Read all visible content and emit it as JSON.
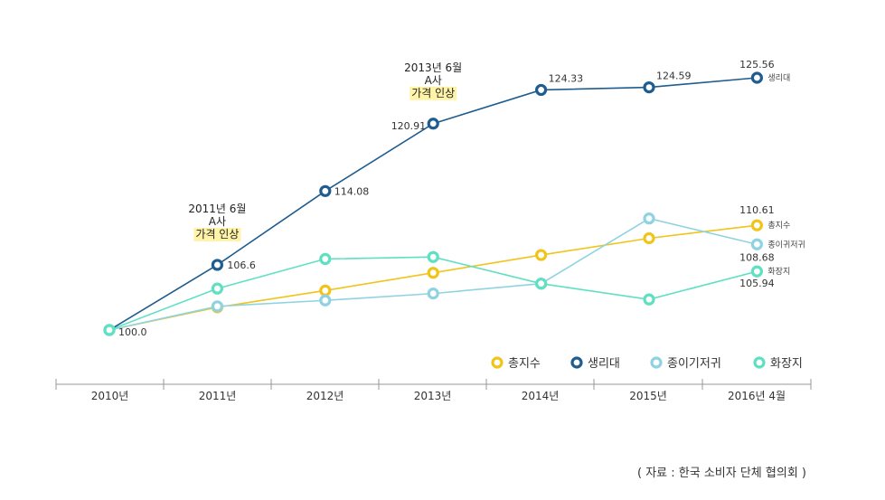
{
  "chart_data": {
    "type": "line",
    "categories": [
      "2010년",
      "2011년",
      "2012년",
      "2013년",
      "2014년",
      "2015년",
      "2016년 4월"
    ],
    "series": [
      {
        "name": "총지수",
        "color": "#f0c419",
        "values": [
          100.0,
          102.3,
          104.0,
          105.8,
          107.6,
          109.3,
          110.61
        ],
        "end_label": "총지수",
        "labels": {
          "6": "110.61"
        }
      },
      {
        "name": "생리대",
        "color": "#1f5c8f",
        "values": [
          100.0,
          106.6,
          114.08,
          120.91,
          124.33,
          124.59,
          125.56
        ],
        "end_label": "생리대",
        "labels": {
          "0": "100.0",
          "1": "106.6",
          "2": "114.08",
          "3": "120.91",
          "4": "124.33",
          "5": "124.59",
          "6": "125.56"
        }
      },
      {
        "name": "종이기저귀",
        "color": "#8fd3e3",
        "values": [
          100.0,
          102.4,
          103.0,
          103.7,
          104.7,
          111.3,
          108.68
        ],
        "end_label": "종이귀저귀",
        "labels": {
          "6": "108.68"
        }
      },
      {
        "name": "화장지",
        "color": "#5fe0c3",
        "values": [
          100.0,
          104.2,
          107.2,
          107.4,
          104.7,
          103.1,
          105.94
        ],
        "end_label": "화장지",
        "labels": {
          "6": "105.94"
        }
      }
    ],
    "ylim": [
      99.0,
      128.0
    ],
    "annotations": [
      {
        "lines": [
          "2011년 6월",
          "A사",
          "가격 인상"
        ],
        "x_index": 1
      },
      {
        "lines": [
          "2013년 6월",
          "A사",
          "가격 인상"
        ],
        "x_index": 3
      }
    ],
    "legend": [
      "총지수",
      "생리대",
      "종이기저귀",
      "화장지"
    ]
  },
  "source": "( 자료 : 한국 소비자 단체 협의회 )"
}
